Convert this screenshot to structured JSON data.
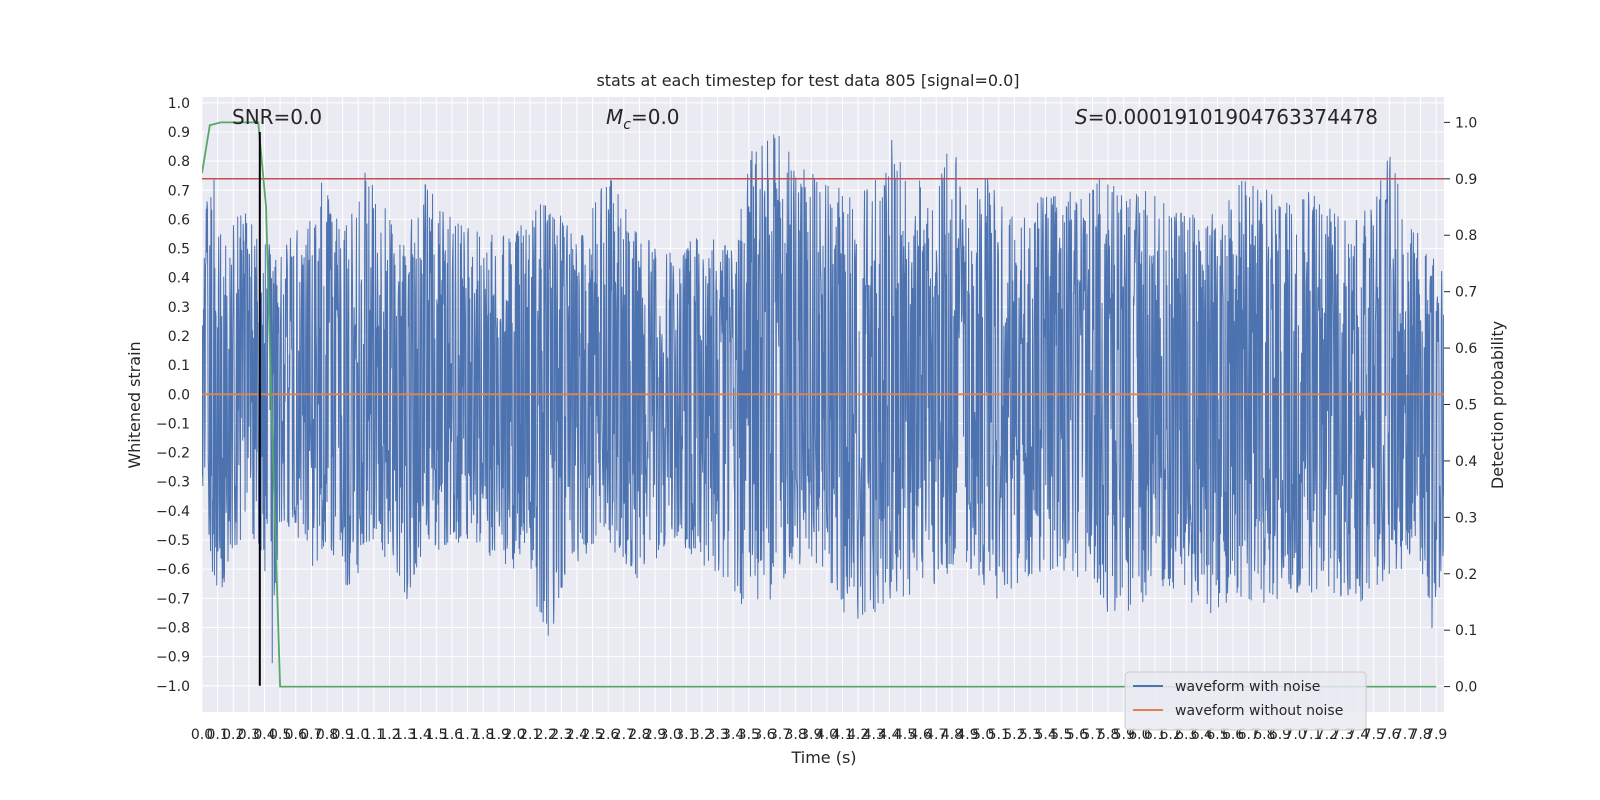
{
  "chart_data": {
    "type": "line",
    "title": "stats at each timestep for test data 805 [signal=0.0]",
    "xlabel": "Time (s)",
    "ylabel_left": "Whitened strain",
    "ylabel_right": "Detection probability",
    "xlim": [
      0.0,
      7.95
    ],
    "ylim_left": [
      -1.09,
      1.02
    ],
    "ylim_right": [
      -0.045,
      1.045
    ],
    "x_ticks": [
      0.0,
      0.1,
      0.2,
      0.3,
      0.4,
      0.5,
      0.6,
      0.7,
      0.8,
      0.9,
      1.0,
      1.1,
      1.2,
      1.3,
      1.4,
      1.5,
      1.6,
      1.7,
      1.8,
      1.9,
      2.0,
      2.1,
      2.2,
      2.3,
      2.4,
      2.5,
      2.6,
      2.7,
      2.8,
      2.9,
      3.0,
      3.1,
      3.2,
      3.3,
      3.4,
      3.5,
      3.6,
      3.7,
      3.8,
      3.9,
      4.0,
      4.1,
      4.2,
      4.3,
      4.4,
      4.5,
      4.6,
      4.7,
      4.8,
      4.9,
      5.0,
      5.1,
      5.2,
      5.3,
      5.4,
      5.5,
      5.6,
      5.7,
      5.8,
      5.9,
      6.0,
      6.1,
      6.2,
      6.3,
      6.4,
      6.5,
      6.6,
      6.7,
      6.8,
      6.9,
      7.0,
      7.1,
      7.2,
      7.3,
      7.4,
      7.5,
      7.6,
      7.7,
      7.8,
      7.9
    ],
    "y_ticks_left": [
      -1.0,
      -0.9,
      -0.8,
      -0.7,
      -0.6,
      -0.5,
      -0.4,
      -0.3,
      -0.2,
      -0.1,
      0.0,
      0.1,
      0.2,
      0.3,
      0.4,
      0.5,
      0.6,
      0.7,
      0.8,
      0.9,
      1.0
    ],
    "y_ticks_right": [
      0.0,
      0.1,
      0.2,
      0.3,
      0.4,
      0.5,
      0.6,
      0.7,
      0.8,
      0.9,
      1.0
    ],
    "annotations": {
      "snr": "SNR=0.0",
      "mc": "=0.0",
      "mc_symbol": "M",
      "mc_subscript": "c",
      "s": "=0.00019101904763374478",
      "s_symbol": "S"
    },
    "legend": {
      "position": "lower right",
      "entries": [
        "waveform with noise",
        "waveform without noise"
      ]
    },
    "grid": true,
    "threshold_line": {
      "axis": "right",
      "y": 0.9,
      "color": "#c44e52"
    },
    "marker_line": {
      "x": 0.37,
      "color": "#000000"
    },
    "noisy_waveform_envelope": {
      "color": "#4c72b0",
      "upper": [
        [
          0.0,
          0.4
        ],
        [
          0.03,
          0.68
        ],
        [
          0.08,
          0.74
        ],
        [
          0.12,
          0.62
        ],
        [
          0.18,
          0.55
        ],
        [
          0.24,
          0.66
        ],
        [
          0.3,
          0.6
        ],
        [
          0.4,
          0.52
        ],
        [
          0.5,
          0.52
        ],
        [
          0.6,
          0.57
        ],
        [
          0.7,
          0.62
        ],
        [
          0.75,
          0.75
        ],
        [
          0.9,
          0.57
        ],
        [
          1.05,
          0.78
        ],
        [
          1.1,
          0.72
        ],
        [
          1.3,
          0.55
        ],
        [
          1.45,
          0.75
        ],
        [
          1.6,
          0.6
        ],
        [
          1.8,
          0.55
        ],
        [
          2.0,
          0.55
        ],
        [
          2.2,
          0.72
        ],
        [
          2.4,
          0.52
        ],
        [
          2.6,
          0.8
        ],
        [
          2.8,
          0.55
        ],
        [
          3.0,
          0.5
        ],
        [
          3.2,
          0.55
        ],
        [
          3.4,
          0.5
        ],
        [
          3.5,
          0.85
        ],
        [
          3.7,
          0.91
        ],
        [
          3.8,
          0.8
        ],
        [
          4.0,
          0.72
        ],
        [
          4.2,
          0.72
        ],
        [
          4.3,
          0.73
        ],
        [
          4.4,
          0.89
        ],
        [
          4.6,
          0.73
        ],
        [
          4.7,
          0.7
        ],
        [
          4.8,
          0.91
        ],
        [
          4.9,
          0.65
        ],
        [
          5.0,
          0.78
        ],
        [
          5.2,
          0.6
        ],
        [
          5.4,
          0.7
        ],
        [
          5.6,
          0.7
        ],
        [
          5.8,
          0.79
        ],
        [
          6.0,
          0.72
        ],
        [
          6.2,
          0.65
        ],
        [
          6.4,
          0.62
        ],
        [
          6.6,
          0.68
        ],
        [
          6.7,
          0.79
        ],
        [
          6.9,
          0.65
        ],
        [
          7.1,
          0.7
        ],
        [
          7.3,
          0.6
        ],
        [
          7.5,
          0.65
        ],
        [
          7.6,
          0.89
        ],
        [
          7.7,
          0.6
        ],
        [
          7.8,
          0.55
        ],
        [
          7.95,
          0.45
        ]
      ],
      "lower": [
        [
          0.0,
          -0.34
        ],
        [
          0.03,
          -0.55
        ],
        [
          0.12,
          -0.7
        ],
        [
          0.18,
          -0.57
        ],
        [
          0.24,
          -0.53
        ],
        [
          0.3,
          -0.45
        ],
        [
          0.4,
          -0.6
        ],
        [
          0.45,
          -1.0
        ],
        [
          0.5,
          -0.45
        ],
        [
          0.6,
          -0.5
        ],
        [
          0.7,
          -0.6
        ],
        [
          0.8,
          -0.55
        ],
        [
          0.95,
          -0.68
        ],
        [
          1.1,
          -0.52
        ],
        [
          1.25,
          -0.62
        ],
        [
          1.3,
          -0.72
        ],
        [
          1.4,
          -0.6
        ],
        [
          1.5,
          -0.55
        ],
        [
          1.7,
          -0.5
        ],
        [
          1.9,
          -0.58
        ],
        [
          2.1,
          -0.62
        ],
        [
          2.2,
          -0.88
        ],
        [
          2.4,
          -0.58
        ],
        [
          2.6,
          -0.55
        ],
        [
          2.8,
          -0.65
        ],
        [
          3.0,
          -0.5
        ],
        [
          3.3,
          -0.63
        ],
        [
          3.4,
          -0.72
        ],
        [
          3.6,
          -0.77
        ],
        [
          3.8,
          -0.58
        ],
        [
          4.0,
          -0.62
        ],
        [
          4.15,
          -0.8
        ],
        [
          4.3,
          -0.75
        ],
        [
          4.5,
          -0.7
        ],
        [
          4.7,
          -0.65
        ],
        [
          4.9,
          -0.62
        ],
        [
          5.1,
          -0.73
        ],
        [
          5.3,
          -0.62
        ],
        [
          5.5,
          -0.6
        ],
        [
          5.8,
          -0.75
        ],
        [
          5.9,
          -0.77
        ],
        [
          6.1,
          -0.68
        ],
        [
          6.3,
          -0.68
        ],
        [
          6.4,
          -0.78
        ],
        [
          6.6,
          -0.7
        ],
        [
          6.8,
          -0.73
        ],
        [
          7.0,
          -0.68
        ],
        [
          7.2,
          -0.7
        ],
        [
          7.4,
          -0.72
        ],
        [
          7.6,
          -0.65
        ],
        [
          7.7,
          -0.6
        ],
        [
          7.8,
          -0.58
        ],
        [
          7.9,
          -0.9
        ],
        [
          7.95,
          -0.5
        ]
      ]
    },
    "series": [
      {
        "name": "waveform without noise",
        "axis": "left",
        "color": "#dd8452",
        "x": [
          0.0,
          7.95
        ],
        "y": [
          0.0,
          0.0
        ]
      },
      {
        "axis": "right",
        "color": "#55a868",
        "x": [
          0.0,
          0.05,
          0.12,
          0.2,
          0.28,
          0.36,
          0.41,
          0.45,
          0.5,
          7.9
        ],
        "y": [
          0.91,
          0.995,
          1.0,
          1.0,
          1.0,
          1.0,
          0.85,
          0.45,
          0.0,
          0.0
        ]
      }
    ]
  }
}
